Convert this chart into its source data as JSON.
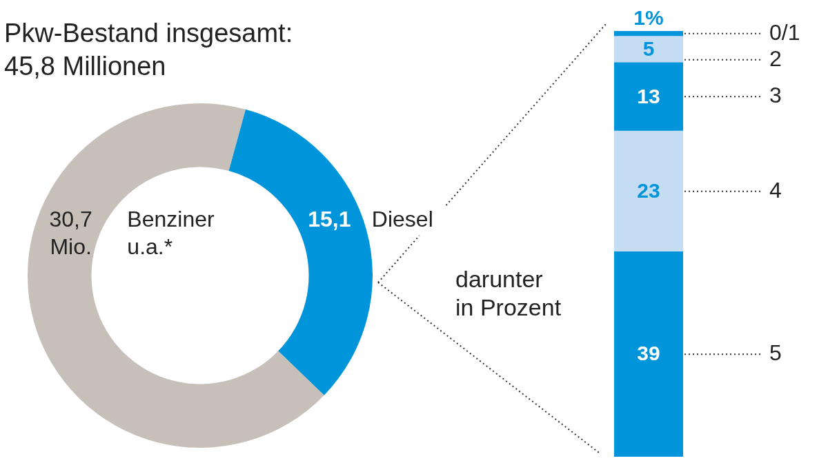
{
  "chart_data": [
    {
      "type": "donut",
      "title": "Pkw-Bestand insgesamt:",
      "subtitle": "45,8 Millionen",
      "categories": [
        "Benziner u.a.*",
        "Diesel"
      ],
      "values": [
        30.7,
        15.1
      ],
      "colors": [
        "#c6c0b9",
        "#0094da"
      ],
      "value_labels": [
        "30,7 Mio.",
        "15,1"
      ],
      "legend": false
    },
    {
      "type": "bar",
      "stacked": true,
      "title": "darunter in Prozent",
      "categories": [
        null
      ],
      "series": [
        {
          "name": "5",
          "color": "#0094da",
          "values": [
            39
          ],
          "value_labels": [
            "39"
          ]
        },
        {
          "name": "4",
          "color": "#c5ddf3",
          "values": [
            23
          ],
          "value_labels": [
            "23"
          ]
        },
        {
          "name": "3",
          "color": "#0094da",
          "values": [
            13
          ],
          "value_labels": [
            "13"
          ]
        },
        {
          "name": "2",
          "color": "#c5ddf3",
          "values": [
            5
          ],
          "value_labels": [
            "5"
          ]
        },
        {
          "name": "0/1",
          "color": "#0094da",
          "values": [
            1
          ],
          "value_labels": [
            "1%"
          ]
        }
      ],
      "legend": false
    }
  ]
}
